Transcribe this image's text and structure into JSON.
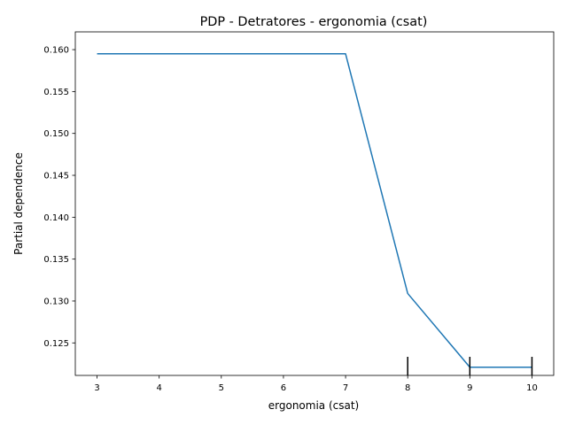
{
  "chart_data": {
    "type": "line",
    "title": "PDP - Detratores - ergonomia (csat)",
    "xlabel": "ergonomia (csat)",
    "ylabel": "Partial dependence",
    "xlim": [
      2.65,
      10.35
    ],
    "ylim": [
      0.12112,
      0.16212
    ],
    "x_ticks": [
      3,
      4,
      5,
      6,
      7,
      8,
      9,
      10
    ],
    "y_ticks": [
      0.125,
      0.13,
      0.135,
      0.14,
      0.145,
      0.15,
      0.155,
      0.16
    ],
    "x_tick_labels": [
      "3",
      "4",
      "5",
      "6",
      "7",
      "8",
      "9",
      "10"
    ],
    "y_tick_labels": [
      "0.125",
      "0.130",
      "0.135",
      "0.140",
      "0.145",
      "0.150",
      "0.155",
      "0.160"
    ],
    "series": [
      {
        "x": [
          3,
          7,
          8,
          9,
          10
        ],
        "y": [
          0.1595,
          0.1595,
          0.1309,
          0.1221,
          0.1221
        ],
        "color": "#1f77b4"
      }
    ],
    "rug": [
      8,
      9,
      10
    ],
    "grid": false,
    "legend": "none"
  }
}
